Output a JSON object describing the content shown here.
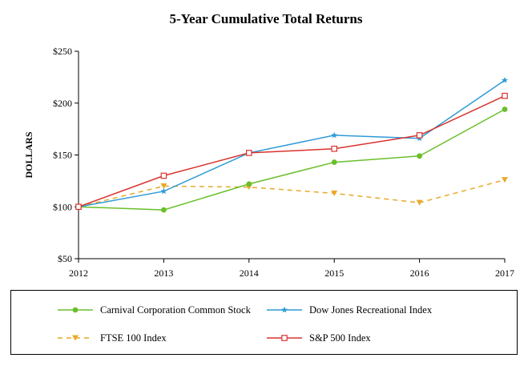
{
  "chart_data": {
    "type": "line",
    "title": "5-Year Cumulative Total Returns",
    "ylabel": "DOLLARS",
    "xlabel": "",
    "x": [
      "2012",
      "2013",
      "2014",
      "2015",
      "2016",
      "2017"
    ],
    "ylim": [
      50,
      250
    ],
    "yticks": [
      50,
      100,
      150,
      200,
      250
    ],
    "ytick_labels": [
      "$50",
      "$100",
      "$150",
      "$200",
      "$250"
    ],
    "grid": false,
    "legend_position": "bottom",
    "series": [
      {
        "name": "Carnival Corporation Common Stock",
        "values": [
          100,
          97,
          122,
          143,
          149,
          194
        ],
        "color": "#6abf2a",
        "marker": "circle",
        "dash": "solid"
      },
      {
        "name": "Dow Jones Recreational Index",
        "values": [
          100,
          115,
          152,
          169,
          166,
          222
        ],
        "color": "#2e9bd6",
        "marker": "star",
        "dash": "solid"
      },
      {
        "name": "FTSE 100 Index",
        "values": [
          100,
          120,
          119,
          113,
          104,
          126
        ],
        "color": "#e8a92a",
        "marker": "triangle-down",
        "dash": "dashed"
      },
      {
        "name": "S&P 500 Index",
        "values": [
          100,
          130,
          152,
          156,
          169,
          207
        ],
        "color": "#d9332f",
        "marker": "square-open",
        "dash": "solid"
      }
    ]
  }
}
